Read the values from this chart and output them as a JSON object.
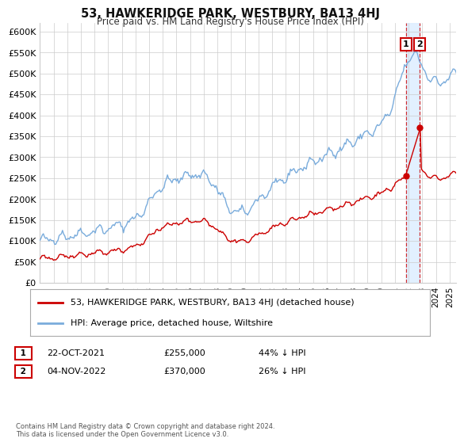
{
  "title": "53, HAWKERIDGE PARK, WESTBURY, BA13 4HJ",
  "subtitle": "Price paid vs. HM Land Registry's House Price Index (HPI)",
  "xlim_start": 1995.0,
  "xlim_end": 2025.5,
  "ylim_min": 0,
  "ylim_max": 620000,
  "yticks": [
    0,
    50000,
    100000,
    150000,
    200000,
    250000,
    300000,
    350000,
    400000,
    450000,
    500000,
    550000,
    600000
  ],
  "ytick_labels": [
    "£0",
    "£50K",
    "£100K",
    "£150K",
    "£200K",
    "£250K",
    "£300K",
    "£350K",
    "£400K",
    "£450K",
    "£500K",
    "£550K",
    "£600K"
  ],
  "xtick_years": [
    1995,
    1996,
    1997,
    1998,
    1999,
    2000,
    2001,
    2002,
    2003,
    2004,
    2005,
    2006,
    2007,
    2008,
    2009,
    2010,
    2011,
    2012,
    2013,
    2014,
    2015,
    2016,
    2017,
    2018,
    2019,
    2020,
    2021,
    2022,
    2023,
    2024,
    2025
  ],
  "legend_label_red": "53, HAWKERIDGE PARK, WESTBURY, BA13 4HJ (detached house)",
  "legend_label_blue": "HPI: Average price, detached house, Wiltshire",
  "sale1_x": 2021.8,
  "sale1_y": 255000,
  "sale2_x": 2022.83,
  "sale2_y": 370000,
  "ann1_label": "1",
  "ann1_date": "22-OCT-2021",
  "ann1_price": "£255,000",
  "ann1_hpi": "44% ↓ HPI",
  "ann2_label": "2",
  "ann2_date": "04-NOV-2022",
  "ann2_price": "£370,000",
  "ann2_hpi": "26% ↓ HPI",
  "footer": "Contains HM Land Registry data © Crown copyright and database right 2024.\nThis data is licensed under the Open Government Licence v3.0.",
  "color_red": "#cc0000",
  "color_blue": "#7aacdc",
  "color_shade": "#ddeeff",
  "bg_color": "#ffffff",
  "grid_color": "#cccccc"
}
